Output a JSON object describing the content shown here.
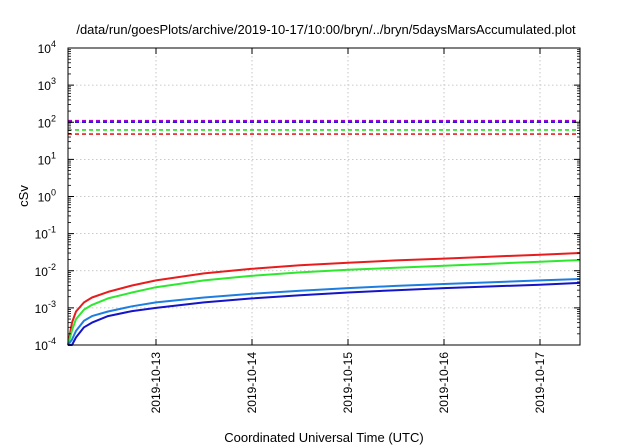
{
  "chart_data": {
    "type": "line",
    "title": "/data/run/goesPlots/archive/2019-10-17/10:00/bryn/../bryn/5daysMarsAccumulated.plot",
    "xlabel": "Coordinated Universal Time (UTC)",
    "ylabel": "cSv",
    "y_scale": "log",
    "ylim": [
      0.0001,
      10000
    ],
    "xlim": [
      "2019-10-12T02:00",
      "2019-10-17T10:00"
    ],
    "grid": true,
    "x_ticks": [
      "2019-10-13",
      "2019-10-14",
      "2019-10-15",
      "2019-10-16",
      "2019-10-17"
    ],
    "y_ticks": [
      {
        "value": 0.0001,
        "base": "10",
        "exp": "-4"
      },
      {
        "value": 0.001,
        "base": "10",
        "exp": "-3"
      },
      {
        "value": 0.01,
        "base": "10",
        "exp": "-2"
      },
      {
        "value": 0.1,
        "base": "10",
        "exp": "-1"
      },
      {
        "value": 1,
        "base": "10",
        "exp": "0"
      },
      {
        "value": 10,
        "base": "10",
        "exp": "1"
      },
      {
        "value": 100,
        "base": "10",
        "exp": "2"
      },
      {
        "value": 1000,
        "base": "10",
        "exp": "3"
      },
      {
        "value": 10000,
        "base": "10",
        "exp": "4"
      }
    ],
    "thresholds": [
      {
        "y": 110,
        "color": "#b000d0",
        "dashed": true
      },
      {
        "y": 100,
        "color": "#1e1ed8",
        "dashed": true
      },
      {
        "y": 62,
        "color": "#22dd22",
        "dashed": true
      },
      {
        "y": 48,
        "color": "#e82020",
        "dashed": true
      }
    ],
    "series": [
      {
        "color": "#e81c1c",
        "x": [
          "2019-10-12T02:00",
          "2019-10-12T03:00",
          "2019-10-12T04:00",
          "2019-10-12T06:00",
          "2019-10-12T08:00",
          "2019-10-12T12:00",
          "2019-10-12T18:00",
          "2019-10-13T00:00",
          "2019-10-13T12:00",
          "2019-10-14T00:00",
          "2019-10-14T12:00",
          "2019-10-15T00:00",
          "2019-10-15T12:00",
          "2019-10-16T00:00",
          "2019-10-16T12:00",
          "2019-10-17T00:00",
          "2019-10-17T10:00"
        ],
        "y": [
          0.0001,
          0.0004,
          0.0008,
          0.0014,
          0.0019,
          0.0027,
          0.004,
          0.0055,
          0.0085,
          0.0113,
          0.014,
          0.0165,
          0.019,
          0.0213,
          0.024,
          0.027,
          0.03
        ]
      },
      {
        "color": "#2ee82e",
        "x": [
          "2019-10-12T02:00",
          "2019-10-12T03:00",
          "2019-10-12T04:00",
          "2019-10-12T06:00",
          "2019-10-12T08:00",
          "2019-10-12T12:00",
          "2019-10-12T18:00",
          "2019-10-13T00:00",
          "2019-10-13T12:00",
          "2019-10-14T00:00",
          "2019-10-14T12:00",
          "2019-10-15T00:00",
          "2019-10-15T12:00",
          "2019-10-16T00:00",
          "2019-10-16T12:00",
          "2019-10-17T00:00",
          "2019-10-17T10:00"
        ],
        "y": [
          0.0001,
          0.00025,
          0.0005,
          0.0009,
          0.0012,
          0.0018,
          0.0026,
          0.0036,
          0.0055,
          0.0073,
          0.009,
          0.0106,
          0.012,
          0.0137,
          0.0155,
          0.0175,
          0.0195
        ]
      },
      {
        "color": "#1e7ee0",
        "x": [
          "2019-10-12T02:00",
          "2019-10-12T03:00",
          "2019-10-12T04:00",
          "2019-10-12T06:00",
          "2019-10-12T08:00",
          "2019-10-12T12:00",
          "2019-10-12T18:00",
          "2019-10-13T00:00",
          "2019-10-13T12:00",
          "2019-10-14T00:00",
          "2019-10-14T12:00",
          "2019-10-15T00:00",
          "2019-10-15T12:00",
          "2019-10-16T00:00",
          "2019-10-16T12:00",
          "2019-10-17T00:00",
          "2019-10-17T10:00"
        ],
        "y": [
          0.0001,
          0.00014,
          0.00024,
          0.00045,
          0.0006,
          0.0008,
          0.0011,
          0.0014,
          0.0019,
          0.0024,
          0.0029,
          0.0034,
          0.0039,
          0.0044,
          0.0049,
          0.0055,
          0.006
        ]
      },
      {
        "color": "#1414c8",
        "x": [
          "2019-10-12T02:00",
          "2019-10-12T03:00",
          "2019-10-12T04:00",
          "2019-10-12T06:00",
          "2019-10-12T08:00",
          "2019-10-12T12:00",
          "2019-10-12T18:00",
          "2019-10-13T00:00",
          "2019-10-13T12:00",
          "2019-10-14T00:00",
          "2019-10-14T12:00",
          "2019-10-15T00:00",
          "2019-10-15T12:00",
          "2019-10-16T00:00",
          "2019-10-16T12:00",
          "2019-10-17T00:00",
          "2019-10-17T10:00"
        ],
        "y": [
          0.0001,
          0.0001,
          0.00016,
          0.0003,
          0.0004,
          0.0006,
          0.00082,
          0.001,
          0.0014,
          0.0018,
          0.0022,
          0.0026,
          0.003,
          0.0034,
          0.0038,
          0.0042,
          0.0047
        ]
      }
    ]
  }
}
